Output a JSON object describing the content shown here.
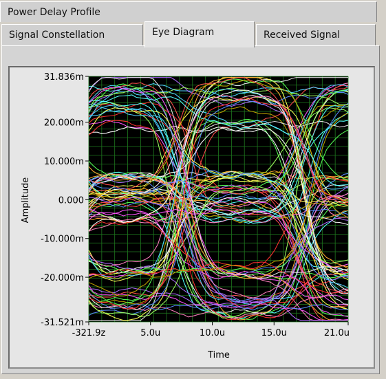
{
  "tabs": {
    "row1": [
      {
        "label": "Power Delay Profile"
      }
    ],
    "row2": [
      {
        "label": "Signal Constellation"
      },
      {
        "label": "Eye Diagram",
        "active": true
      },
      {
        "label": "Received Signal"
      }
    ]
  },
  "chart_data": {
    "type": "line",
    "xlabel": "Time",
    "ylabel": "Amplitude",
    "x_ticks": [
      "-321.9z",
      "5.0u",
      "10.0u",
      "15.0u",
      "21.0u"
    ],
    "y_ticks": [
      "31.836m",
      "20.000m",
      "10.000m",
      "0.000",
      "-10.000m",
      "-20.000m",
      "-31.521m"
    ],
    "xlim": [
      0,
      21.0
    ],
    "ylim": [
      -31.521,
      31.836
    ],
    "x_unit": "u",
    "y_unit": "m",
    "grid": true,
    "plot_background": "#000000",
    "grid_color": "#1f7a1f",
    "eye_crossings_x": [
      0,
      7.7,
      17.2
    ],
    "eye_opening_center_x": [
      4.2,
      12.1
    ],
    "trace_colors": [
      "#ff4d4d",
      "#ffff55",
      "#55ff55",
      "#55ffff",
      "#5a8cff",
      "#ff55ff",
      "#ffffff",
      "#ffaa33",
      "#b06cff",
      "#ff7fbf",
      "#a0ff60",
      "#4fd0ff",
      "#ff3030",
      "#e8e8e8",
      "#c0a000"
    ]
  }
}
